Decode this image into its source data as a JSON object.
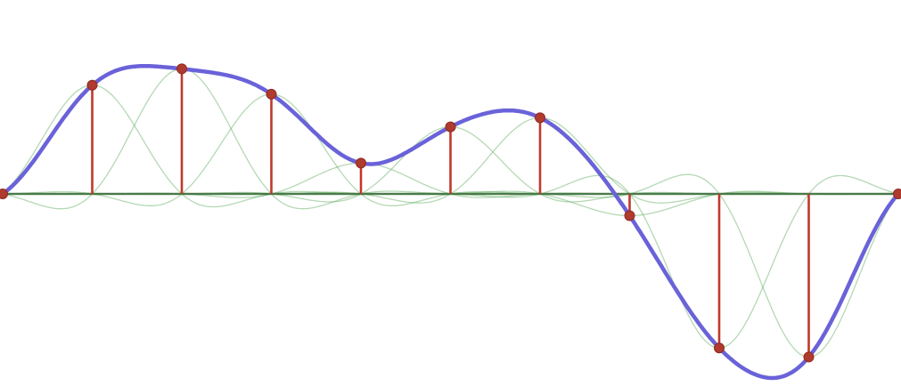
{
  "chart_data": {
    "type": "line",
    "title": "",
    "xlabel": "",
    "ylabel": "",
    "grid": false,
    "legend": "none",
    "samples": [
      0.0,
      0.6,
      0.69,
      0.55,
      0.17,
      0.37,
      0.42,
      -0.12,
      -0.85,
      -0.9,
      0.0
    ],
    "xlim": [
      0,
      10
    ],
    "ylim": [
      -1.05,
      1.06
    ],
    "series": [
      {
        "role": "reconstructed-signal",
        "color": "#6a62d9"
      },
      {
        "role": "sample-stems",
        "color": "#c0392b"
      },
      {
        "role": "sinc-kernels",
        "color": "#4caf50"
      }
    ]
  },
  "colors": {
    "background": "#ffffff",
    "axis": "#3d6b3d",
    "signal": "#6a62d9",
    "stem": "#c0392b",
    "dot": "#b03a2e",
    "kernel": "#5aa85a"
  }
}
